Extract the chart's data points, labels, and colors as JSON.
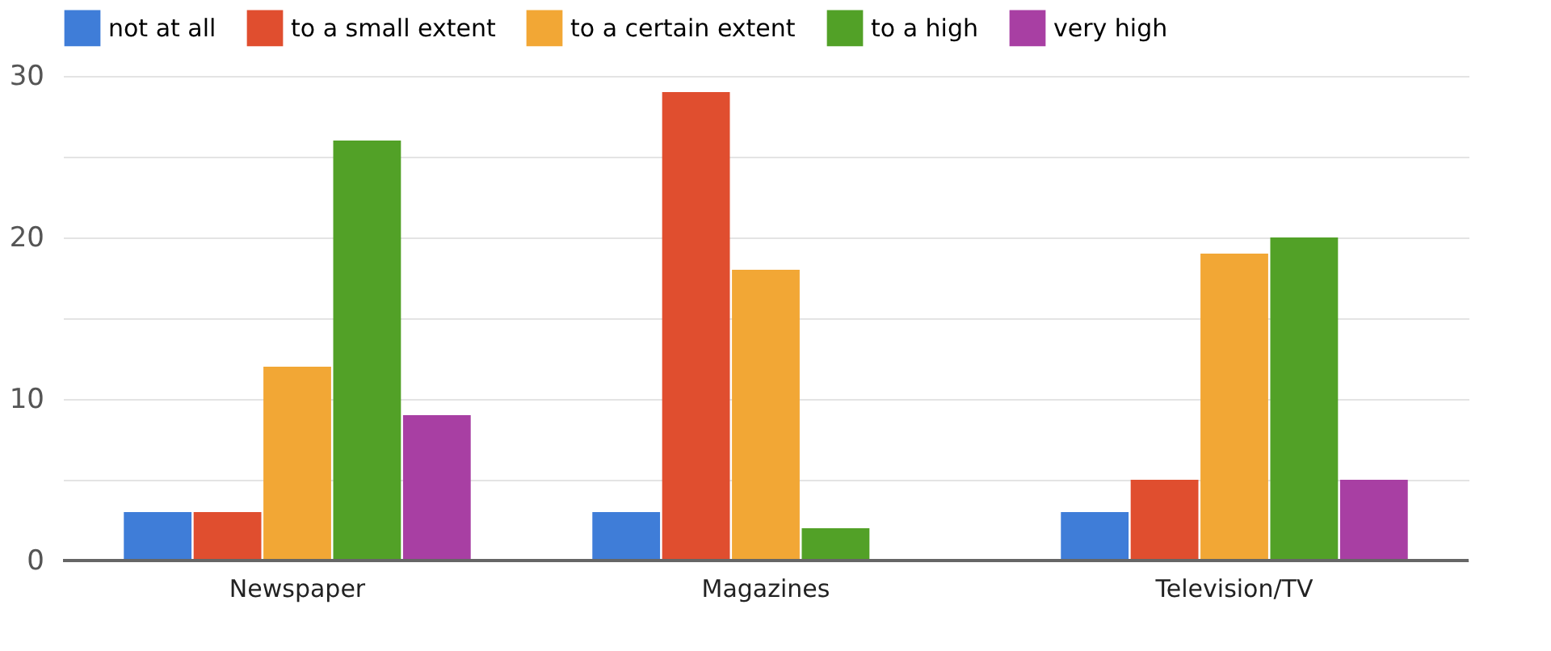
{
  "chart_data": {
    "type": "bar",
    "categories": [
      "Newspaper",
      "Magazines",
      "Television/TV"
    ],
    "series": [
      {
        "name": "not at all",
        "color": "#3f7dd8",
        "values": [
          3,
          3,
          3
        ]
      },
      {
        "name": "to a small extent",
        "color": "#e04e2f",
        "values": [
          3,
          29,
          5
        ]
      },
      {
        "name": "to a certain extent",
        "color": "#f2a735",
        "values": [
          12,
          18,
          19
        ]
      },
      {
        "name": "to a high",
        "color": "#52a127",
        "values": [
          26,
          2,
          20
        ]
      },
      {
        "name": "very high",
        "color": "#a83fa3",
        "values": [
          9,
          0,
          5
        ]
      }
    ],
    "ylim": [
      0,
      30
    ],
    "yticks": [
      0,
      {
        "value": 5,
        "label": null
      },
      10,
      {
        "value": 15,
        "label": null
      },
      20,
      {
        "value": 25,
        "label": null
      },
      30
    ],
    "grid": "y",
    "legend": "top"
  }
}
